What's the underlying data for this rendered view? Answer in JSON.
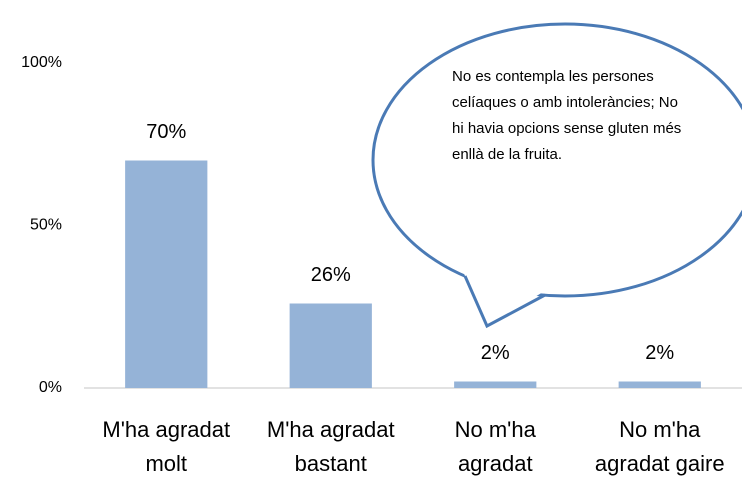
{
  "chart_data": {
    "type": "bar",
    "categories": [
      "M'ha agradat molt",
      "M'ha agradat bastant",
      "No m'ha agradat",
      "No m'ha agradat gaire"
    ],
    "values": [
      70,
      26,
      2,
      2
    ],
    "value_labels": [
      "70%",
      "26%",
      "2%",
      "2%"
    ],
    "color": "#95b3d7",
    "ylim": [
      0,
      100
    ],
    "yticks": [
      {
        "value": 0,
        "label": "0%"
      },
      {
        "value": 50,
        "label": "50%"
      },
      {
        "value": 100,
        "label": "100%"
      }
    ],
    "grid": false,
    "annotation": "No es contempla les persones celíaques o amb intoleràncies; No hi havia opcions sense gluten més enllà de la fruita."
  }
}
